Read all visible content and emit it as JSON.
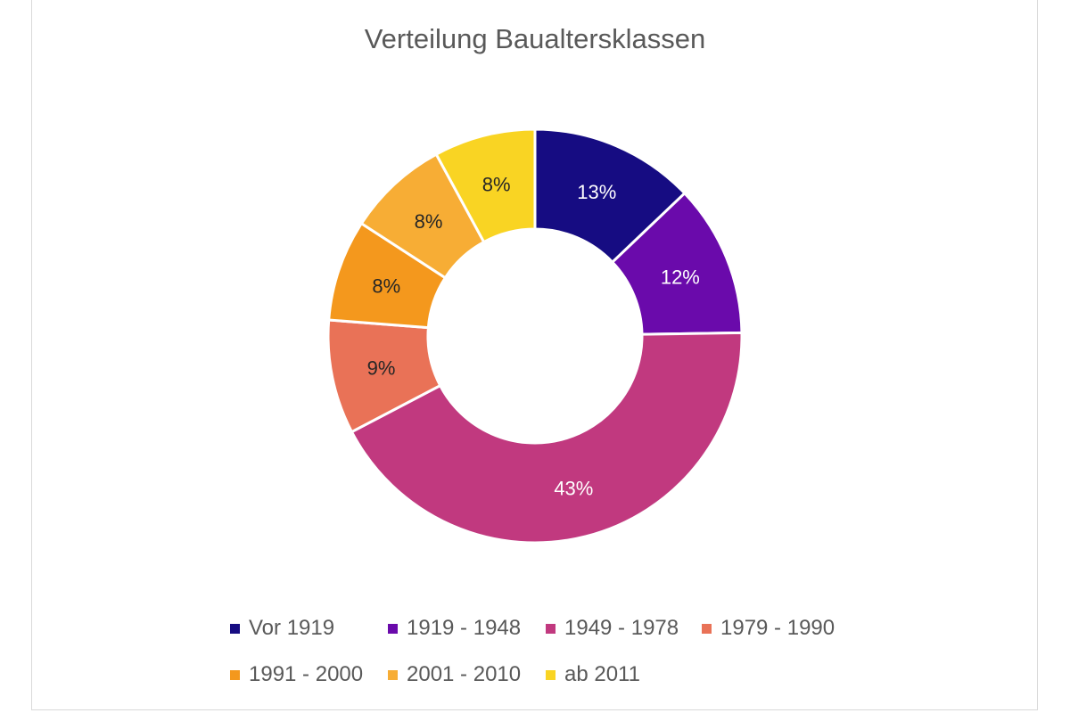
{
  "chart_data": {
    "type": "pie",
    "variant": "donut",
    "title": "Verteilung Baualtersklassen",
    "categories": [
      "Vor 1919",
      "1919 - 1948",
      "1949 - 1978",
      "1979 - 1990",
      "1991 - 2000",
      "2001 - 2010",
      "ab 2011"
    ],
    "values": [
      13,
      12,
      43,
      9,
      8,
      8,
      8
    ],
    "data_labels": [
      "13%",
      "12%",
      "43%",
      "9%",
      "8%",
      "8%",
      "8%"
    ],
    "colors": [
      "#160c82",
      "#6a0aab",
      "#c1397f",
      "#e97257",
      "#f4981d",
      "#f7ad35",
      "#f9d423"
    ],
    "label_colors": [
      "#ffffff",
      "#ffffff",
      "#ffffff",
      "#262626",
      "#262626",
      "#262626",
      "#262626"
    ],
    "legend_position": "bottom"
  }
}
